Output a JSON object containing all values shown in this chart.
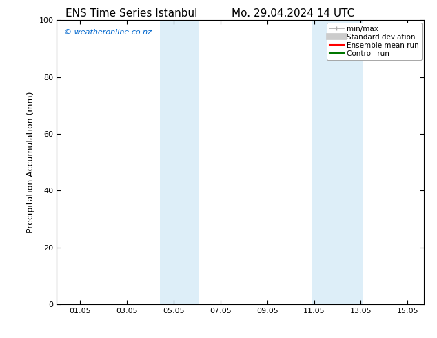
{
  "title_left": "ENS Time Series Istanbul",
  "title_right": "Mo. 29.04.2024 14 UTC",
  "ylabel": "Precipitation Accumulation (mm)",
  "ylim": [
    0,
    100
  ],
  "yticks": [
    0,
    20,
    40,
    60,
    80,
    100
  ],
  "xtick_labels": [
    "01.05",
    "03.05",
    "05.05",
    "07.05",
    "09.05",
    "11.05",
    "13.05",
    "15.05"
  ],
  "xtick_positions": [
    1,
    3,
    5,
    7,
    9,
    11,
    13,
    15
  ],
  "xlim": [
    0,
    15.7
  ],
  "shaded_regions": [
    {
      "xmin": 4.4,
      "xmax": 6.1,
      "color": "#ddeef8"
    },
    {
      "xmin": 10.9,
      "xmax": 13.1,
      "color": "#ddeef8"
    }
  ],
  "watermark_text": "© weatheronline.co.nz",
  "watermark_color": "#0066cc",
  "legend_items": [
    {
      "label": "min/max",
      "color": "#aaaaaa",
      "lw": 1.2,
      "style": "caps"
    },
    {
      "label": "Standard deviation",
      "color": "#cccccc",
      "lw": 7,
      "style": "solid"
    },
    {
      "label": "Ensemble mean run",
      "color": "#ff0000",
      "lw": 1.5,
      "style": "solid"
    },
    {
      "label": "Controll run",
      "color": "#007700",
      "lw": 1.5,
      "style": "solid"
    }
  ],
  "bg_color": "#ffffff",
  "title_fontsize": 11,
  "axis_fontsize": 9,
  "tick_fontsize": 8,
  "legend_fontsize": 7.5,
  "watermark_fontsize": 8
}
